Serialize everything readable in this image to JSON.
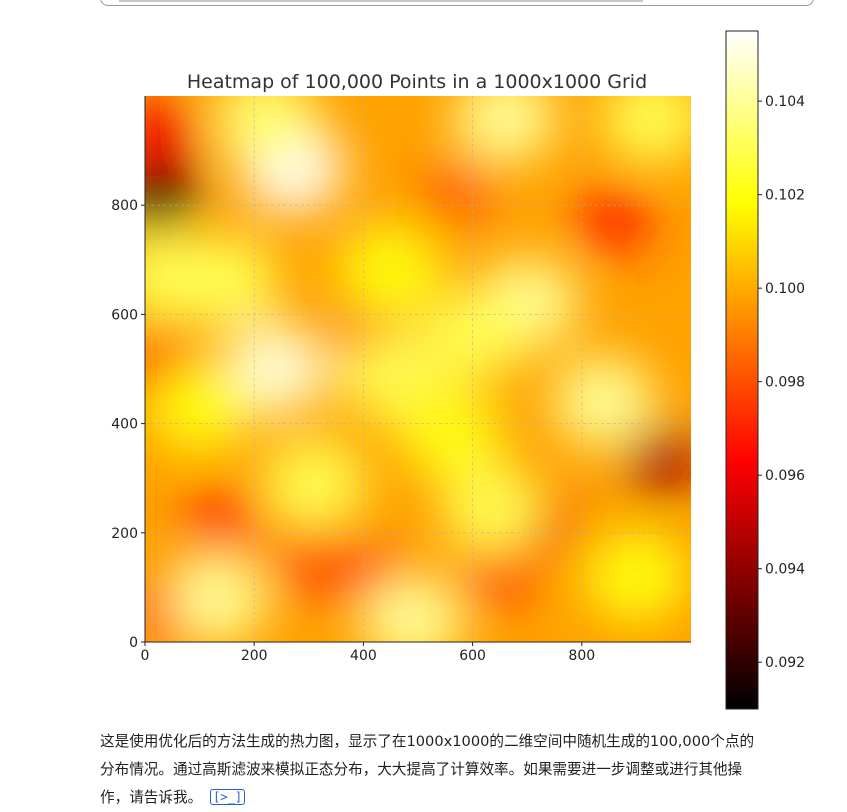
{
  "chart_data": {
    "type": "heatmap",
    "title": "Heatmap of 100,000 Points in a 1000x1000 Grid",
    "xlabel": "",
    "ylabel": "",
    "xlim": [
      0,
      1000
    ],
    "ylim": [
      0,
      1000
    ],
    "x_ticks": [
      0,
      200,
      400,
      600,
      800
    ],
    "y_ticks": [
      0,
      200,
      400,
      600,
      800
    ],
    "grid": true,
    "colormap": "hot",
    "colorbar": {
      "vmin": 0.091,
      "vmax": 0.1055,
      "ticks": [
        "0.092",
        "0.094",
        "0.096",
        "0.098",
        "0.100",
        "0.102",
        "0.104"
      ]
    },
    "hotspots": [
      {
        "x": 270,
        "y": 870,
        "value": 0.1055
      },
      {
        "x": 220,
        "y": 960,
        "value": 0.1035
      },
      {
        "x": 660,
        "y": 960,
        "value": 0.104
      },
      {
        "x": 930,
        "y": 960,
        "value": 0.103
      },
      {
        "x": 40,
        "y": 670,
        "value": 0.103
      },
      {
        "x": 150,
        "y": 660,
        "value": 0.103
      },
      {
        "x": 450,
        "y": 680,
        "value": 0.102
      },
      {
        "x": 700,
        "y": 620,
        "value": 0.104
      },
      {
        "x": 600,
        "y": 560,
        "value": 0.103
      },
      {
        "x": 240,
        "y": 500,
        "value": 0.105
      },
      {
        "x": 450,
        "y": 490,
        "value": 0.103
      },
      {
        "x": 840,
        "y": 440,
        "value": 0.104
      },
      {
        "x": 100,
        "y": 430,
        "value": 0.102
      },
      {
        "x": 310,
        "y": 290,
        "value": 0.103
      },
      {
        "x": 560,
        "y": 380,
        "value": 0.102
      },
      {
        "x": 640,
        "y": 240,
        "value": 0.103
      },
      {
        "x": 130,
        "y": 80,
        "value": 0.104
      },
      {
        "x": 490,
        "y": 40,
        "value": 0.104
      },
      {
        "x": 900,
        "y": 120,
        "value": 0.102
      }
    ],
    "coldspots": [
      {
        "x": 25,
        "y": 820,
        "value": 0.091
      },
      {
        "x": 30,
        "y": 930,
        "value": 0.096
      },
      {
        "x": 420,
        "y": 550,
        "value": 0.0965
      },
      {
        "x": 950,
        "y": 330,
        "value": 0.0945
      },
      {
        "x": 720,
        "y": 220,
        "value": 0.096
      },
      {
        "x": 860,
        "y": 770,
        "value": 0.097
      },
      {
        "x": 30,
        "y": 500,
        "value": 0.0975
      },
      {
        "x": 140,
        "y": 220,
        "value": 0.0975
      },
      {
        "x": 40,
        "y": 60,
        "value": 0.097
      },
      {
        "x": 420,
        "y": 120,
        "value": 0.098
      },
      {
        "x": 650,
        "y": 130,
        "value": 0.0975
      },
      {
        "x": 570,
        "y": 820,
        "value": 0.0985
      },
      {
        "x": 310,
        "y": 140,
        "value": 0.098
      }
    ]
  },
  "caption": {
    "line1": "这是使用优化后的方法生成的热力图，显示了在1000x1000的二维空间中随机生成的100,000个点的",
    "line2": "分布情况。通过高斯滤波来模拟正态分布，大大提高了计算效率。如果需要进一步调整或进行其他操",
    "line3": "作，请告诉我。",
    "source_icon": "[>_]"
  },
  "icons": {
    "source": "code-source-icon"
  }
}
